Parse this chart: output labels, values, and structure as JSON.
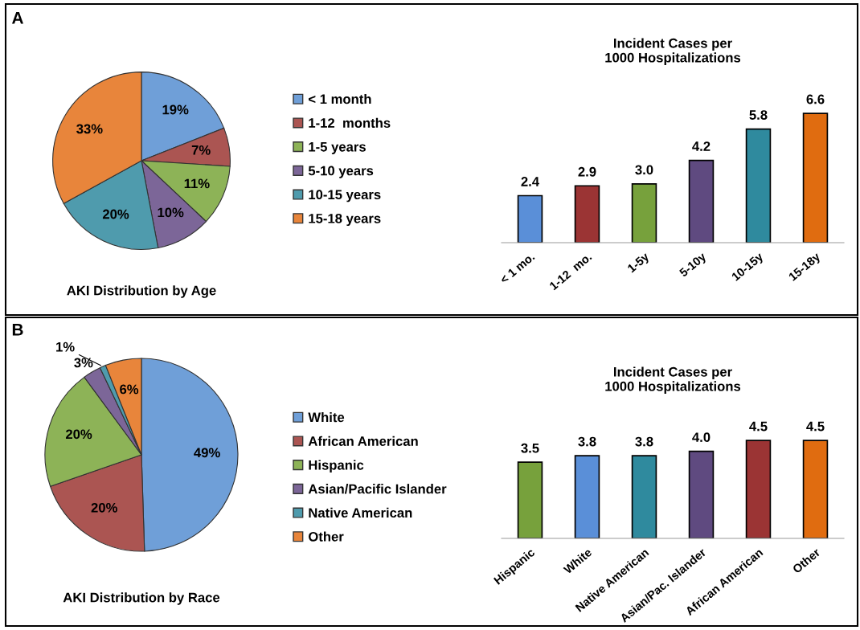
{
  "chart_data": [
    {
      "type": "pie",
      "title": "AKI Distribution by Age",
      "annotations": [
        "A"
      ],
      "legend": "right",
      "categories": [
        "< 1 month",
        "1-12  months",
        "1-5 years",
        "5-10 years",
        "10-15 years",
        "15-18 years"
      ],
      "values": [
        19,
        7,
        11,
        10,
        20,
        33
      ],
      "value_labels": [
        "19%",
        "7%",
        "11%",
        "10%",
        "20%",
        "33%"
      ],
      "colors": [
        "#6f9fd8",
        "#ab5552",
        "#8db357",
        "#7c6698",
        "#4f9bad",
        "#e8853b"
      ]
    },
    {
      "type": "bar",
      "title": "Incident Cases per\n1000 Hospitalizations",
      "categories": [
        "< 1 mo.",
        "1-12  mo.",
        "1-5y",
        "5-10y",
        "10-15y",
        "15-18y"
      ],
      "values": [
        2.4,
        2.9,
        3.0,
        4.2,
        5.8,
        6.6
      ],
      "value_labels": [
        "2.4",
        "2.9",
        "3.0",
        "4.2",
        "5.8",
        "6.6"
      ],
      "colors": [
        "#5a8fd8",
        "#9b3434",
        "#77a13c",
        "#5f4a80",
        "#2f8a9e",
        "#e06c10"
      ]
    },
    {
      "type": "pie",
      "title": "AKI Distribution by Race",
      "annotations": [
        "B"
      ],
      "legend": "right",
      "categories": [
        "White",
        "African American",
        "Hispanic",
        "Asian/Pacific Islander",
        "Native American",
        "Other"
      ],
      "values": [
        49,
        20,
        20,
        3,
        1,
        6
      ],
      "value_labels": [
        "49%",
        "20%",
        "20%",
        "3%",
        "1%",
        "6%"
      ],
      "colors": [
        "#6f9fd8",
        "#ab5552",
        "#8db357",
        "#7c6698",
        "#4f9bad",
        "#e8853b"
      ]
    },
    {
      "type": "bar",
      "title": "Incident Cases per\n1000 Hospitalizations",
      "categories": [
        "Hispanic",
        "White",
        "Native American",
        "Asian/Pac. Islander",
        "African American",
        "Other"
      ],
      "values": [
        3.5,
        3.8,
        3.8,
        4.0,
        4.5,
        4.5
      ],
      "value_labels": [
        "3.5",
        "3.8",
        "3.8",
        "4.0",
        "4.5",
        "4.5"
      ],
      "colors": [
        "#77a13c",
        "#5a8fd8",
        "#2f8a9e",
        "#5f4a80",
        "#9b3434",
        "#e06c10"
      ]
    }
  ]
}
